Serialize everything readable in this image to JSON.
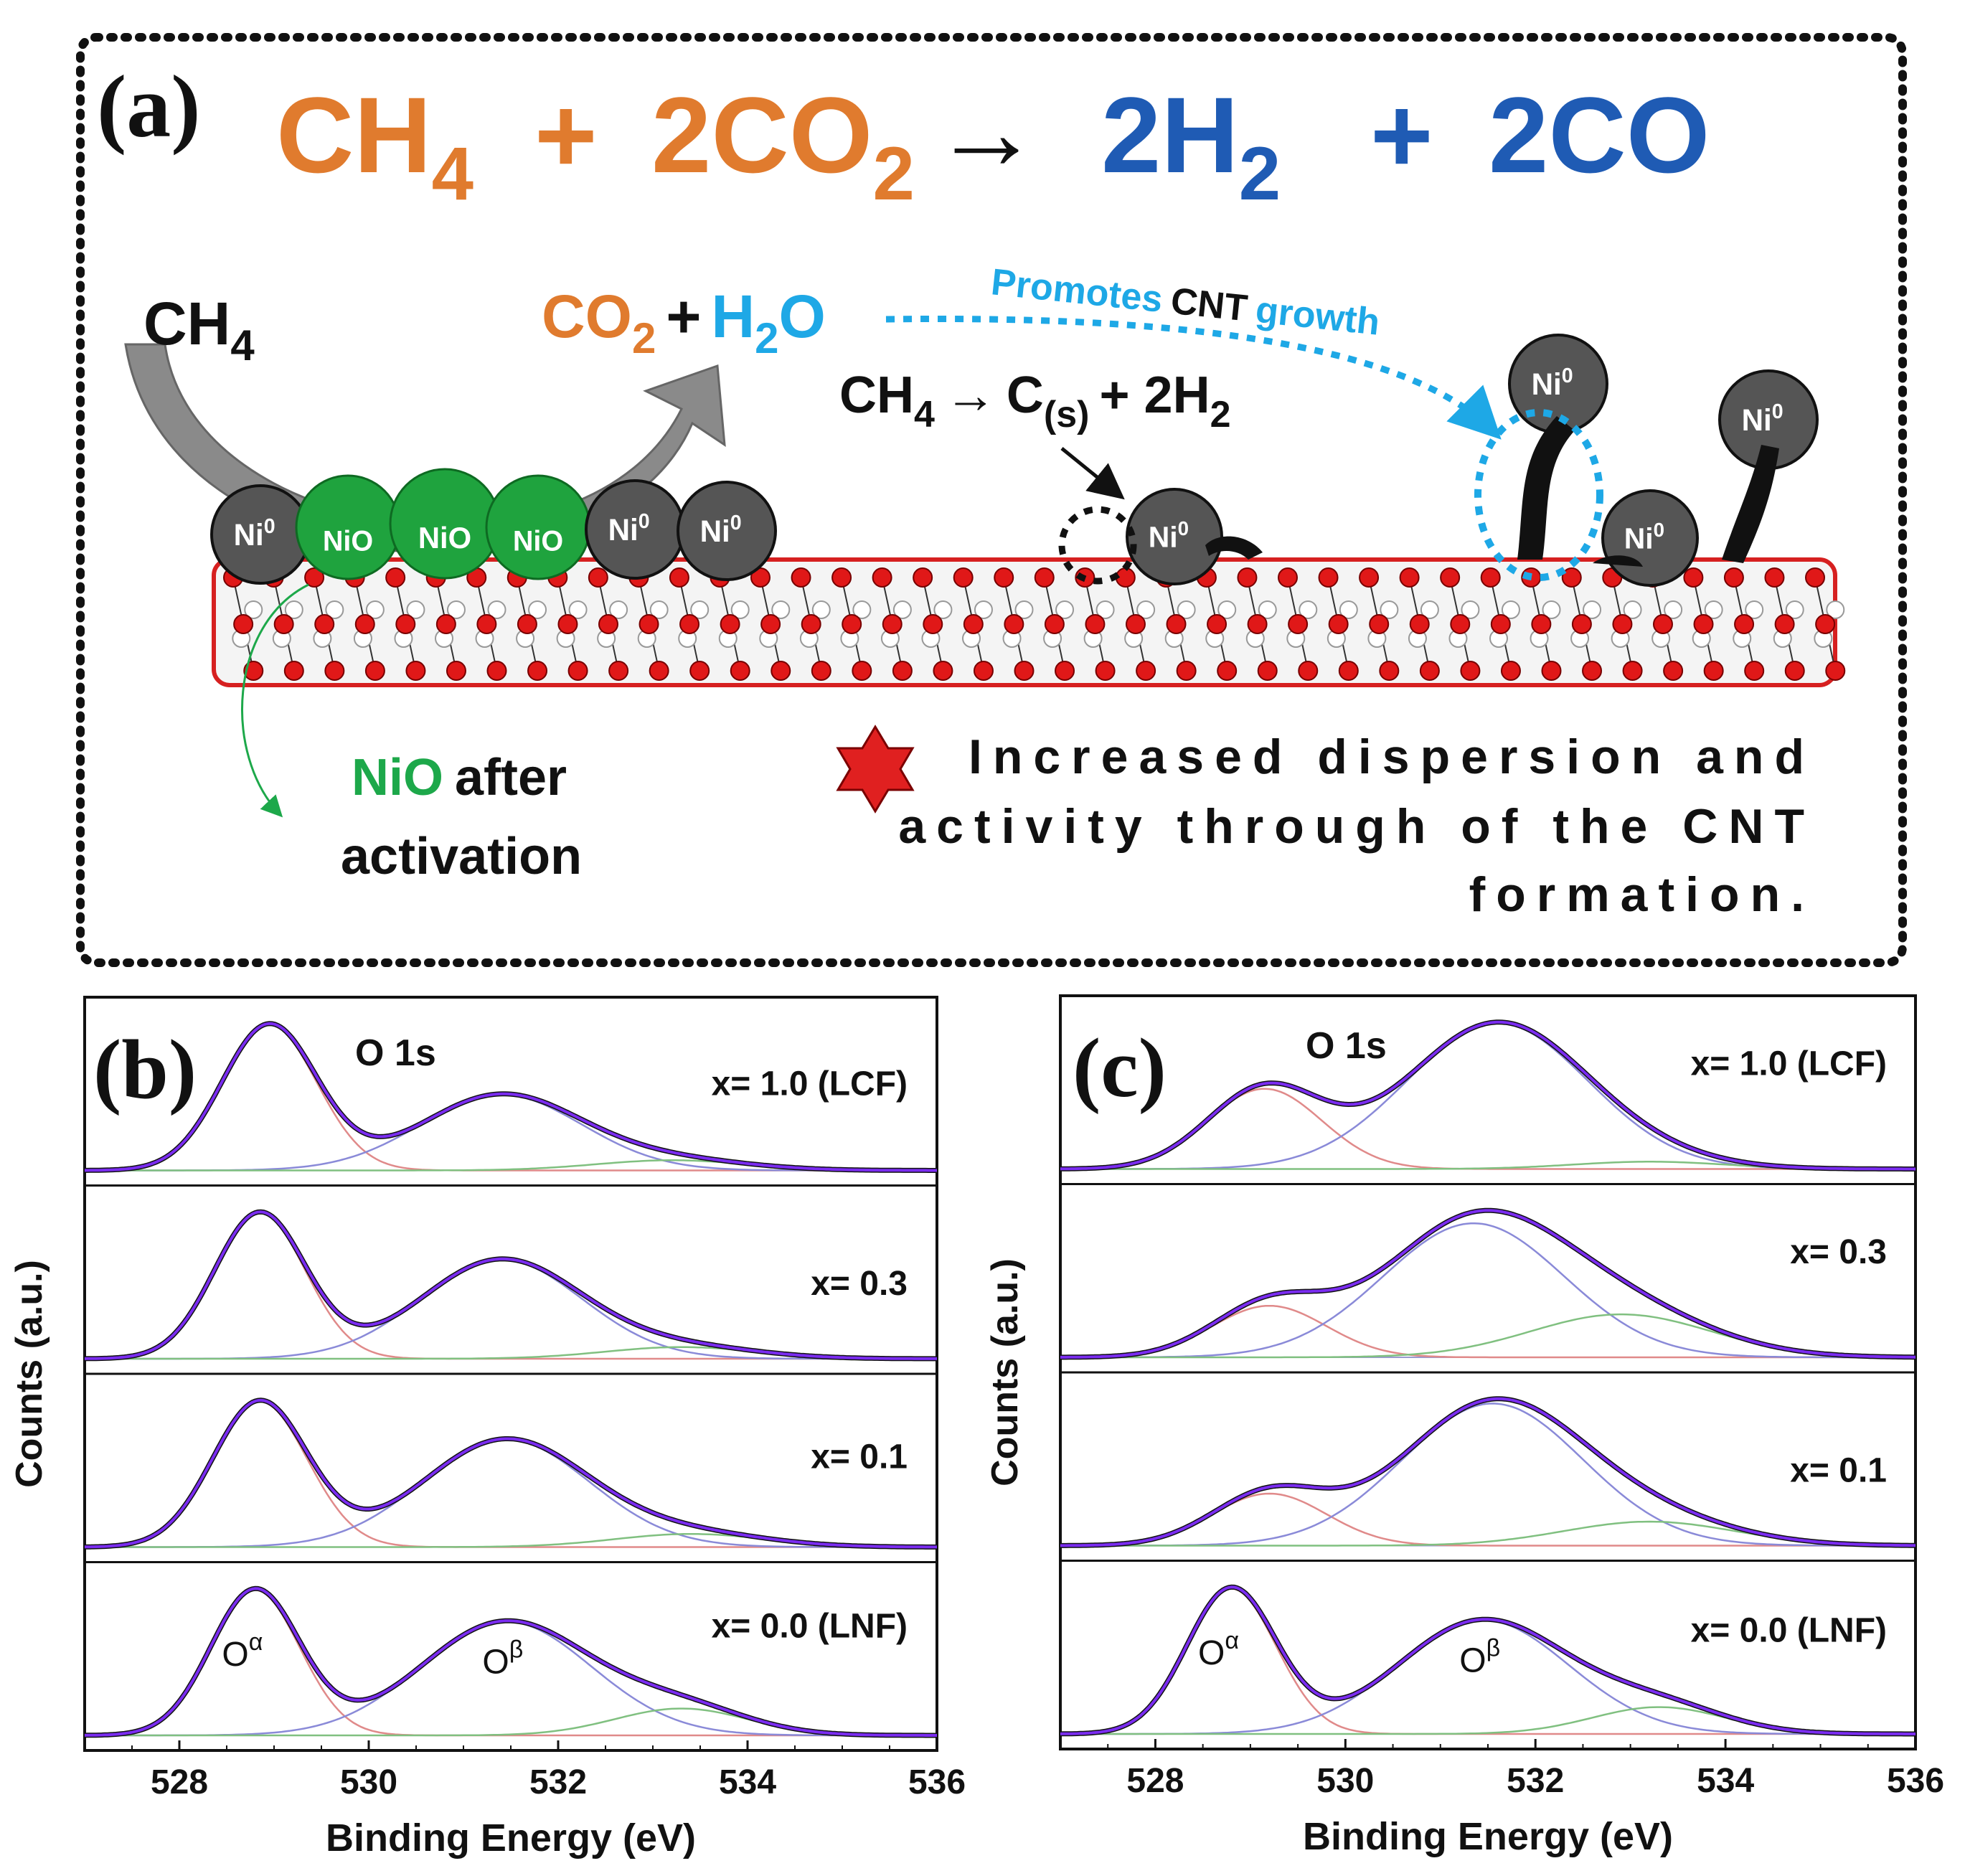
{
  "panel_a": {
    "label": "(a)",
    "main_reaction": {
      "ch4": "CH",
      "ch4_sub": "4",
      "plus1": "+",
      "co2": "CO",
      "co2_sub": "2",
      "arrow": "→",
      "h2": "2H",
      "h2_sub": "2",
      "plus2": "+",
      "co": "2CO"
    },
    "ch4_reactant": {
      "text": "CH",
      "sub": "4"
    },
    "products": {
      "co2": "CO",
      "co2_sub": "2",
      "plus": "+",
      "h2o_a": "H",
      "h2o_sub": "2",
      "h2o_b": "O"
    },
    "promotes": {
      "a": "Promotes",
      "b": "CNT",
      "c": "growth"
    },
    "decomposition": {
      "a": "CH",
      "a_sub": "4",
      "arrow": "→",
      "b": "C",
      "b_sub": "(s)",
      "c": "+ 2H",
      "c_sub": "2"
    },
    "particles": {
      "ni0": "Ni",
      "ni0_sup": "0",
      "nio": "NiO"
    },
    "nio_note": {
      "nio": "NiO",
      "after": "after",
      "line2": "activation"
    },
    "highlight": {
      "line1": "Increased dispersion and",
      "line2": "activity through of the CNT",
      "line3": "formation."
    },
    "colors": {
      "orange": "#E07B2E",
      "blue": "#1F5BB4",
      "cyan": "#1EA8E6",
      "green": "#1DA84A",
      "red": "#E02020"
    }
  },
  "chart_data": [
    {
      "type": "line",
      "panel_label": "(b)",
      "title": "O 1s",
      "xlabel": "Binding Energy (eV)",
      "ylabel": "Counts (a.u.)",
      "xlim": [
        527,
        536
      ],
      "x_ticks": [
        528,
        530,
        532,
        534,
        536
      ],
      "component_labels": {
        "alpha": "O",
        "alpha_sup": "α",
        "beta": "O",
        "beta_sup": "β"
      },
      "series": [
        {
          "name": "x= 1.0 (LCF)",
          "peaks": [
            {
              "center": 528.95,
              "height": 1.0,
              "sigma": 0.5
            },
            {
              "center": 531.4,
              "height": 0.52,
              "sigma": 0.85
            },
            {
              "center": 533.2,
              "height": 0.07,
              "sigma": 0.8
            }
          ]
        },
        {
          "name": "x= 0.3",
          "peaks": [
            {
              "center": 528.85,
              "height": 1.0,
              "sigma": 0.48
            },
            {
              "center": 531.4,
              "height": 0.68,
              "sigma": 0.85
            },
            {
              "center": 533.3,
              "height": 0.08,
              "sigma": 0.8
            }
          ]
        },
        {
          "name": "x= 0.1",
          "peaks": [
            {
              "center": 528.85,
              "height": 1.0,
              "sigma": 0.5
            },
            {
              "center": 531.45,
              "height": 0.74,
              "sigma": 0.88
            },
            {
              "center": 533.4,
              "height": 0.09,
              "sigma": 0.8
            }
          ]
        },
        {
          "name": "x= 0.0 (LNF)",
          "peaks": [
            {
              "center": 528.8,
              "height": 0.92,
              "sigma": 0.47
            },
            {
              "center": 531.45,
              "height": 0.72,
              "sigma": 0.9
            },
            {
              "center": 533.3,
              "height": 0.17,
              "sigma": 0.7
            }
          ]
        }
      ]
    },
    {
      "type": "line",
      "panel_label": "(c)",
      "title": "O 1s",
      "xlabel": "Binding Energy (eV)",
      "ylabel": "Counts (a.u.)",
      "xlim": [
        527,
        536
      ],
      "x_ticks": [
        528,
        530,
        532,
        534,
        536
      ],
      "component_labels": {
        "alpha": "O",
        "alpha_sup": "α",
        "beta": "O",
        "beta_sup": "β"
      },
      "series": [
        {
          "name": "x= 1.0 (LCF)",
          "peaks": [
            {
              "center": 529.15,
              "height": 0.55,
              "sigma": 0.6
            },
            {
              "center": 531.6,
              "height": 1.0,
              "sigma": 0.95
            },
            {
              "center": 533.2,
              "height": 0.05,
              "sigma": 0.8
            }
          ]
        },
        {
          "name": "x= 0.3",
          "peaks": [
            {
              "center": 529.2,
              "height": 0.3,
              "sigma": 0.6
            },
            {
              "center": 531.35,
              "height": 0.78,
              "sigma": 0.95
            },
            {
              "center": 532.9,
              "height": 0.25,
              "sigma": 0.95
            }
          ]
        },
        {
          "name": "x= 0.1",
          "peaks": [
            {
              "center": 529.2,
              "height": 0.26,
              "sigma": 0.6
            },
            {
              "center": 531.55,
              "height": 0.71,
              "sigma": 0.95
            },
            {
              "center": 533.2,
              "height": 0.12,
              "sigma": 0.9
            }
          ]
        },
        {
          "name": "x= 0.0 (LNF)",
          "peaks": [
            {
              "center": 528.8,
              "height": 0.92,
              "sigma": 0.47
            },
            {
              "center": 531.45,
              "height": 0.72,
              "sigma": 0.9
            },
            {
              "center": 533.3,
              "height": 0.17,
              "sigma": 0.7
            }
          ]
        }
      ]
    }
  ]
}
